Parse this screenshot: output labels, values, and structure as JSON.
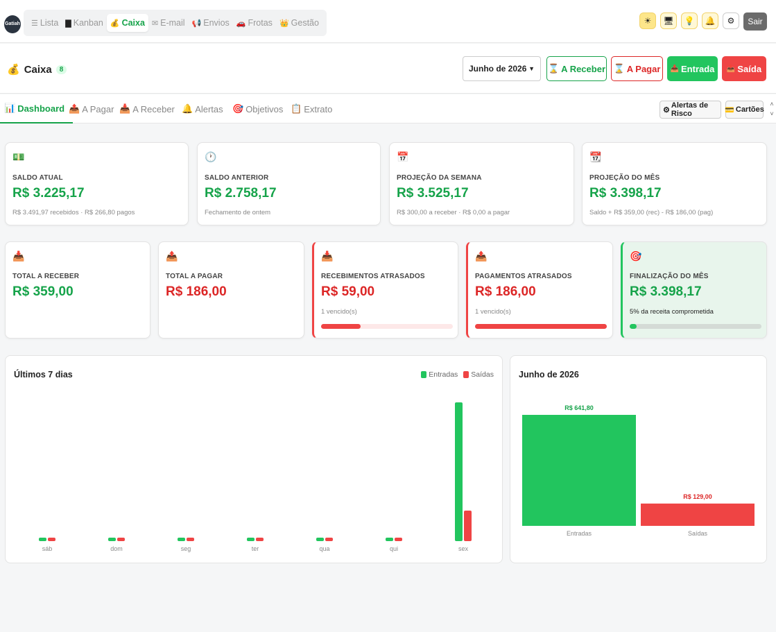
{
  "nav": {
    "logo_text": "Gatiah",
    "items": [
      {
        "icon": "☰",
        "label": "Lista"
      },
      {
        "icon": "▇",
        "label": "Kanban"
      },
      {
        "icon": "💰",
        "label": "Caixa"
      },
      {
        "icon": "✉",
        "label": "E-mail"
      },
      {
        "icon": "📢",
        "label": "Envios"
      },
      {
        "icon": "🚗",
        "label": "Frotas"
      },
      {
        "icon": "👑",
        "label": "Gestão"
      }
    ],
    "logout_label": "Sair"
  },
  "header": {
    "title": "Caixa",
    "badge": "8",
    "month_select": "Junho de 2026",
    "btn_receber": "A Receber",
    "btn_pagar": "A Pagar",
    "btn_entrada": "Entrada",
    "btn_saida": "Saída"
  },
  "tabs": [
    {
      "label": "Dashboard"
    },
    {
      "label": "A Pagar"
    },
    {
      "label": "A Receber"
    },
    {
      "label": "Alertas"
    },
    {
      "label": "Objetivos"
    },
    {
      "label": "Extrato"
    }
  ],
  "tab_buttons": {
    "risk": "Alertas de Risco",
    "cards": "Cartões"
  },
  "cards_row1": [
    {
      "label": "SALDO ATUAL",
      "value": "R$ 3.225,17",
      "sub": "R$ 3.491,97 recebidos · R$ 266,80 pagos"
    },
    {
      "label": "SALDO ANTERIOR",
      "value": "R$ 2.758,17",
      "sub": "Fechamento de ontem"
    },
    {
      "label": "PROJEÇÃO DA SEMANA",
      "value": "R$ 3.525,17",
      "sub": "R$ 300,00 a receber · R$ 0,00 a pagar"
    },
    {
      "label": "PROJEÇÃO DO MÊS",
      "value": "R$ 3.398,17",
      "sub": "Saldo + R$ 359,00 (rec) - R$ 186,00 (pag)"
    }
  ],
  "cards_row2": [
    {
      "label": "TOTAL A RECEBER",
      "value": "R$ 359,00"
    },
    {
      "label": "TOTAL A PAGAR",
      "value": "R$ 186,00"
    },
    {
      "label": "RECEBIMENTOS ATRASADOS",
      "value": "R$ 59,00",
      "sub": "1 vencido(s)",
      "progress": 0.3
    },
    {
      "label": "PAGAMENTOS ATRASADOS",
      "value": "R$ 186,00",
      "sub": "1 vencido(s)",
      "progress": 1.0
    },
    {
      "label": "FINALIZAÇÃO DO MÊS",
      "value": "R$ 3.398,17",
      "sub": "5% da receita comprometida",
      "progress": 0.05
    }
  ],
  "colors": {
    "green": "#22c55e",
    "red": "#ef4444"
  },
  "chart_data": [
    {
      "type": "bar",
      "title": "Últimos 7 dias",
      "categories": [
        "sáb",
        "dom",
        "seg",
        "ter",
        "qua",
        "qui",
        "sex"
      ],
      "series": [
        {
          "name": "Entradas",
          "values": [
            25,
            25,
            10,
            10,
            10,
            10,
            2500
          ]
        },
        {
          "name": "Saídas",
          "values": [
            10,
            10,
            10,
            10,
            10,
            10,
            550
          ]
        }
      ],
      "legend": "top-right"
    },
    {
      "type": "bar",
      "title": "Junho de 2026",
      "categories": [
        "Entradas",
        "Saídas"
      ],
      "values": [
        641.8,
        129.0
      ],
      "data_labels": [
        "R$ 641,80",
        "R$ 129,00"
      ]
    }
  ]
}
